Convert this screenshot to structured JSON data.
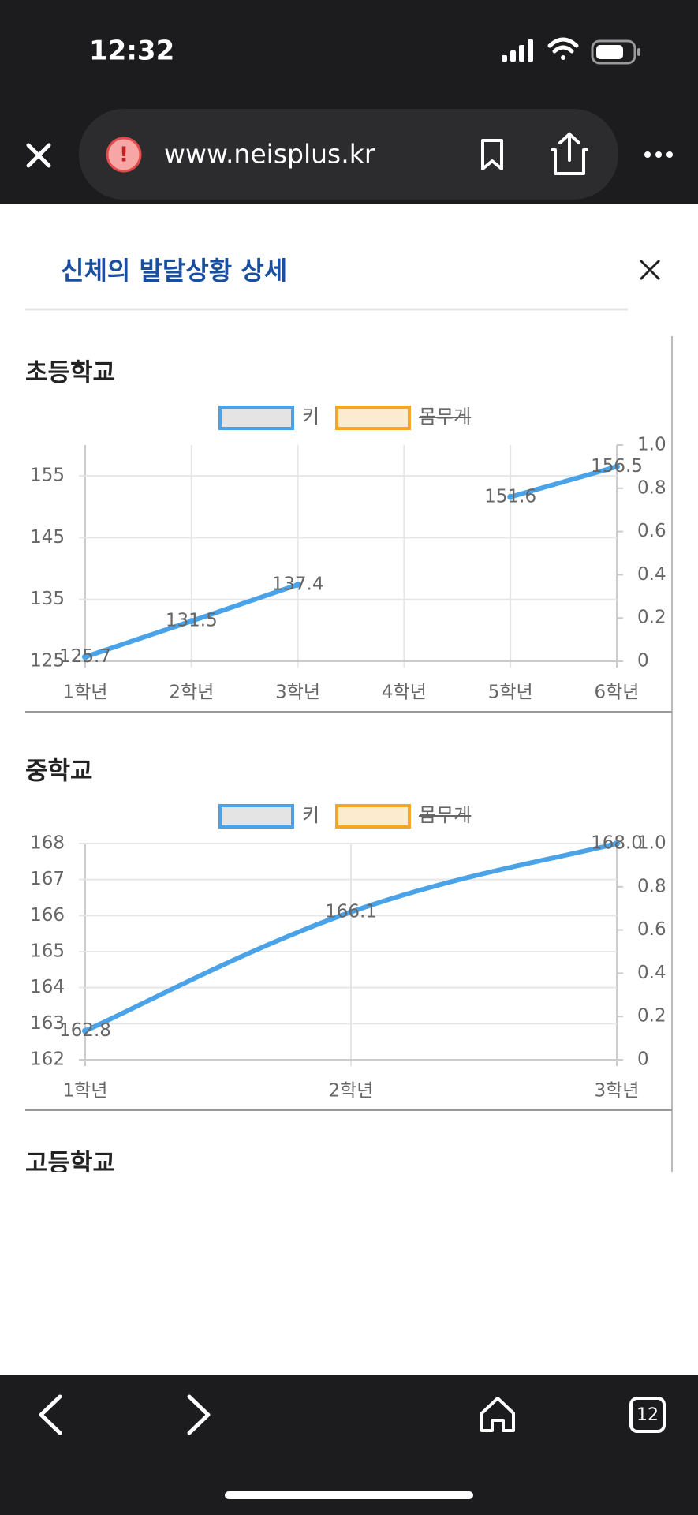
{
  "status": {
    "time": "12:32"
  },
  "browser": {
    "url": "www.neisplus.kr",
    "tabs": "12"
  },
  "modal": {
    "title": "신체의 발달상황 상세",
    "next_section": "고등학교"
  },
  "chart_data": [
    {
      "type": "line",
      "title": "초등학교",
      "categories": [
        "1학년",
        "2학년",
        "3학년",
        "4학년",
        "5학년",
        "6학년"
      ],
      "series": [
        {
          "name": "키",
          "color": "#4aa3e8",
          "values": [
            125.7,
            131.5,
            137.4,
            null,
            151.6,
            156.5
          ]
        },
        {
          "name": "몸무게",
          "color": "#f5a623",
          "values": [
            null,
            null,
            null,
            null,
            null,
            null
          ],
          "axis": "y2",
          "hidden": true
        }
      ],
      "ylim": [
        125,
        160
      ],
      "yticks": [
        125,
        135,
        145,
        155
      ],
      "y2lim": [
        0,
        1
      ],
      "y2ticks": [
        0,
        0.2,
        0.4,
        0.6,
        0.8,
        {
          "value": 1,
          "label": "1.0"
        }
      ],
      "grid": true
    },
    {
      "type": "line",
      "title": "중학교",
      "categories": [
        "1학년",
        "2학년",
        "3학년"
      ],
      "series": [
        {
          "name": "키",
          "color": "#4aa3e8",
          "values": [
            162.8,
            166.1,
            168.0
          ],
          "value_labels": [
            "162.8",
            "166.1",
            "168.0"
          ]
        },
        {
          "name": "몸무게",
          "color": "#f5a623",
          "values": [
            null,
            null,
            null
          ],
          "axis": "y2",
          "hidden": true
        }
      ],
      "ylim": [
        162,
        168
      ],
      "yticks": [
        162,
        163,
        164,
        165,
        166,
        167,
        168
      ],
      "y2lim": [
        0,
        1
      ],
      "y2ticks": [
        0,
        0.2,
        0.4,
        0.6,
        0.8,
        {
          "value": 1,
          "label": "1.0"
        }
      ],
      "grid": true
    }
  ]
}
